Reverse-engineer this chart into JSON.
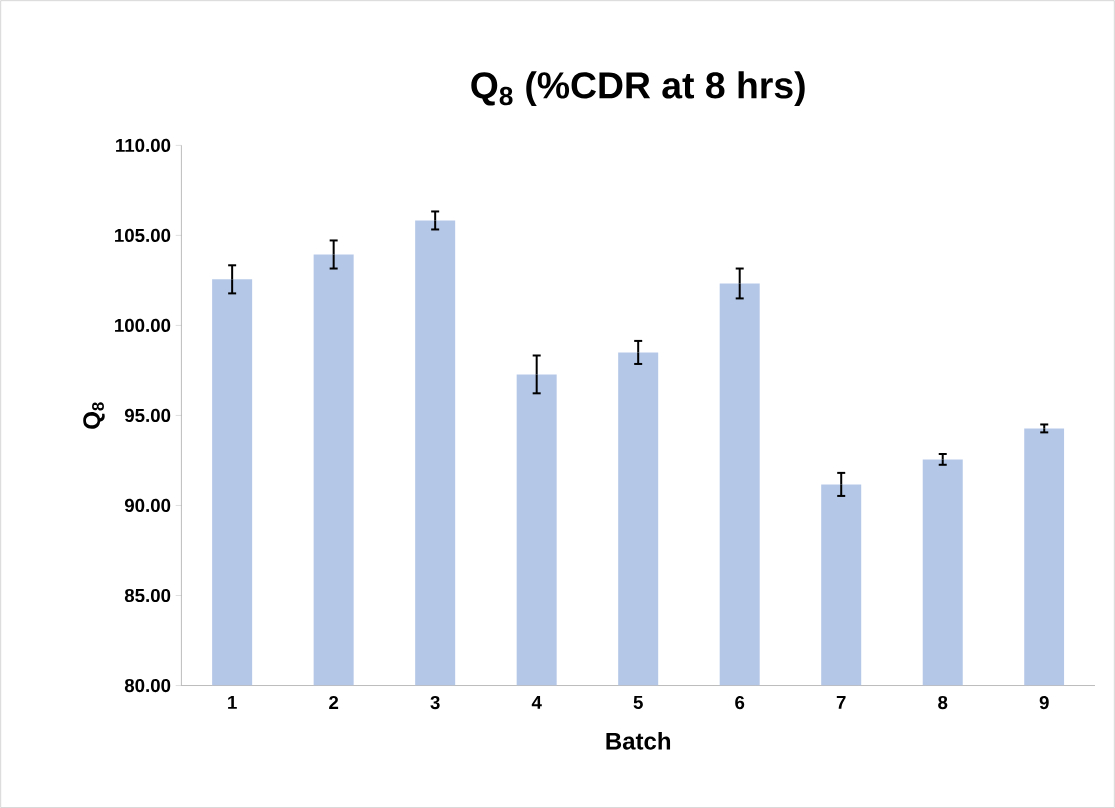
{
  "chart_data": {
    "type": "bar",
    "title": "Q$_{8}$ (%CDR at 8 hrs)",
    "xlabel": "Batch",
    "ylabel": "Q$_{8}$",
    "categories": [
      "1",
      "2",
      "3",
      "4",
      "5",
      "6",
      "7",
      "8",
      "9"
    ],
    "values": [
      102.56,
      103.94,
      105.83,
      97.28,
      98.5,
      102.33,
      91.17,
      92.56,
      94.28
    ],
    "errors": [
      0.78,
      0.78,
      0.5,
      1.05,
      0.64,
      0.83,
      0.64,
      0.3,
      0.22
    ],
    "color": "#b4c7e7",
    "ylim": [
      80,
      110
    ],
    "yticks": [
      {
        "value": 80,
        "label": "80.00"
      },
      {
        "value": 85,
        "label": "85.00"
      },
      {
        "value": 90,
        "label": "90.00"
      },
      {
        "value": 95,
        "label": "95.00"
      },
      {
        "value": 100,
        "label": "100.00"
      },
      {
        "value": 105,
        "label": "105.00"
      },
      {
        "value": 110,
        "label": "110.00"
      }
    ],
    "grid": false
  }
}
